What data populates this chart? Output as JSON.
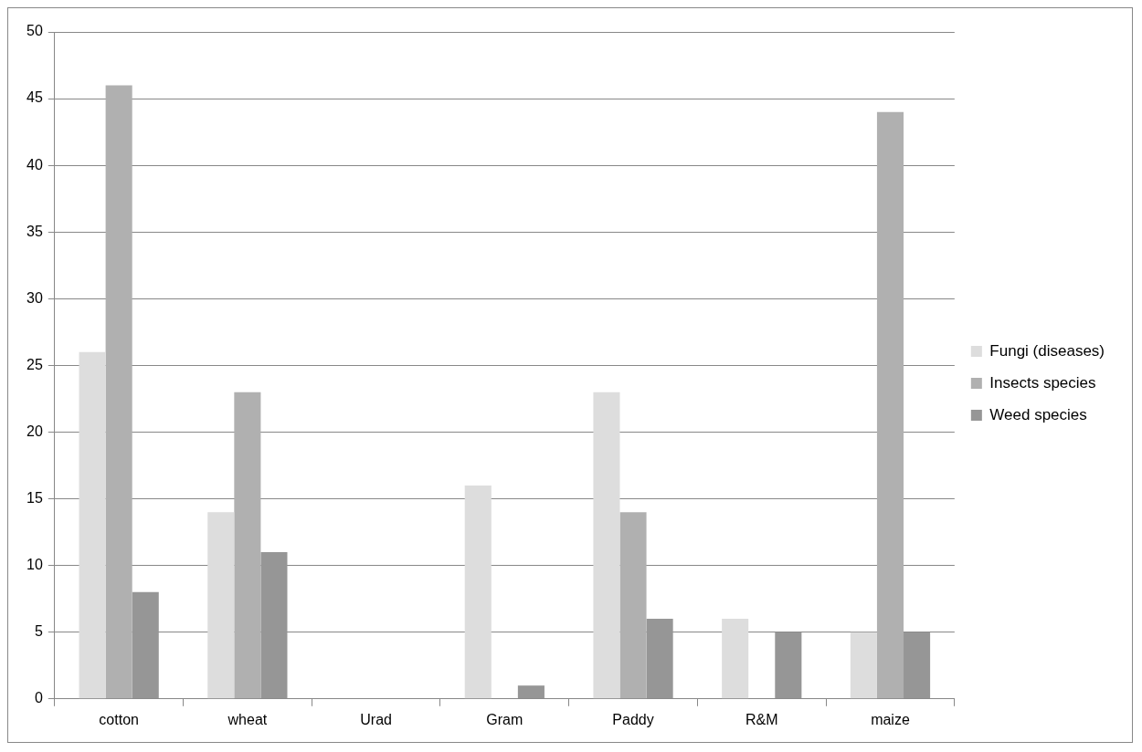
{
  "chart_data": {
    "type": "bar",
    "categories": [
      "cotton",
      "wheat",
      "Urad",
      "Gram",
      "Paddy",
      "R&M",
      "maize"
    ],
    "series": [
      {
        "name": "Fungi (diseases)",
        "color": "#dddddd",
        "values": [
          26,
          14,
          0,
          16,
          23,
          6,
          5
        ]
      },
      {
        "name": "Insects species",
        "color": "#b0b0b0",
        "values": [
          46,
          23,
          0,
          0,
          14,
          0,
          44
        ]
      },
      {
        "name": "Weed species",
        "color": "#969696",
        "values": [
          8,
          11,
          0,
          1,
          6,
          5,
          5
        ]
      }
    ],
    "ylim": [
      0,
      50
    ],
    "yticks": [
      0,
      5,
      10,
      15,
      20,
      25,
      30,
      35,
      40,
      45,
      50
    ],
    "grid": "y",
    "legend": "right"
  }
}
